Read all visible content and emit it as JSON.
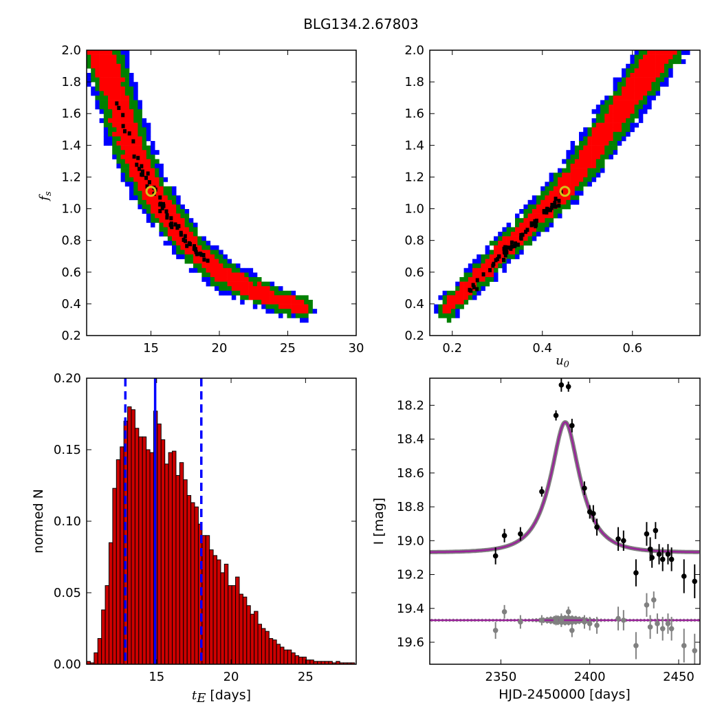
{
  "figure": {
    "title": "BLG134.2.67803"
  },
  "colors": {
    "sigma1": "#ff0000",
    "sigma2": "#008000",
    "sigma3": "#0000ff",
    "samples": "#000000",
    "bestfit_marker": "#d4c21a",
    "hist_bar": "#cc0000",
    "quantile_line": "#0000ff",
    "model_line": "#992299",
    "model_band": "#808080",
    "data_points": "#000000",
    "residual_points": "#808080"
  },
  "chart_data": [
    {
      "id": "fs_vs_tE",
      "type": "heatmap",
      "xlabel": "",
      "ylabel_main": "f",
      "ylabel_sub": "s",
      "xlim": [
        10.3,
        30
      ],
      "ylim": [
        0.2,
        2.0
      ],
      "xticks": [
        15,
        20,
        25,
        30
      ],
      "yticks": [
        0.2,
        0.4,
        0.6,
        0.8,
        1.0,
        1.2,
        1.4,
        1.6,
        1.8,
        2.0
      ],
      "xtick_labels": [
        "15",
        "20",
        "25",
        "30"
      ],
      "ytick_labels": [
        "0.2",
        "0.4",
        "0.6",
        "0.8",
        "1.0",
        "1.2",
        "1.4",
        "1.6",
        "1.8",
        "2.0"
      ],
      "ridge": [
        [
          11.4,
          2.0
        ],
        [
          12.5,
          1.7
        ],
        [
          13.5,
          1.4
        ],
        [
          14.5,
          1.2
        ],
        [
          15.5,
          1.05
        ],
        [
          16.5,
          0.92
        ],
        [
          18,
          0.76
        ],
        [
          20,
          0.6
        ],
        [
          22,
          0.5
        ],
        [
          24,
          0.43
        ],
        [
          26,
          0.38
        ]
      ],
      "band_widths": {
        "sigma1": [
          1.1,
          0.6
        ],
        "sigma2": [
          1.7,
          1.3
        ],
        "sigma3": [
          2.2,
          1.9
        ]
      },
      "best_fit": [
        15.0,
        1.11
      ]
    },
    {
      "id": "fs_vs_u0",
      "type": "heatmap",
      "xlabel_main": "u",
      "xlabel_sub": "0",
      "ylabel": "",
      "xlim": [
        0.15,
        0.75
      ],
      "ylim": [
        0.2,
        2.0
      ],
      "xticks": [
        0.2,
        0.4,
        0.6
      ],
      "yticks": [
        0.2,
        0.4,
        0.6,
        0.8,
        1.0,
        1.2,
        1.4,
        1.6,
        1.8,
        2.0
      ],
      "xtick_labels": [
        "0.2",
        "0.4",
        "0.6"
      ],
      "ytick_labels": [
        "0.2",
        "0.4",
        "0.6",
        "0.8",
        "1.0",
        "1.2",
        "1.4",
        "1.6",
        "1.8",
        "2.0"
      ],
      "ridge": [
        [
          0.19,
          0.37
        ],
        [
          0.25,
          0.55
        ],
        [
          0.31,
          0.73
        ],
        [
          0.37,
          0.9
        ],
        [
          0.43,
          1.06
        ],
        [
          0.49,
          1.28
        ],
        [
          0.55,
          1.52
        ],
        [
          0.61,
          1.77
        ],
        [
          0.67,
          2.0
        ]
      ],
      "band_widths": {
        "sigma1": [
          0.018,
          0.035
        ],
        "sigma2": [
          0.026,
          0.05
        ],
        "sigma3": [
          0.032,
          0.06
        ]
      },
      "best_fit": [
        0.45,
        1.11
      ]
    },
    {
      "id": "tE_histogram",
      "type": "bar",
      "xlabel_main": "t",
      "xlabel_sub": "E",
      "xlabel_tail": " [days]",
      "ylabel": "normed N",
      "xlim": [
        10.3,
        28.4
      ],
      "ylim": [
        0.0,
        0.2
      ],
      "xticks": [
        15,
        20,
        25
      ],
      "yticks": [
        0.0,
        0.05,
        0.1,
        0.15,
        0.2
      ],
      "xtick_labels": [
        "15",
        "20",
        "25"
      ],
      "ytick_labels": [
        "0.00",
        "0.05",
        "0.10",
        "0.15",
        "0.20"
      ],
      "bin_start": 10.3,
      "bin_width": 0.25,
      "values": [
        0.002,
        0.001,
        0.008,
        0.018,
        0.038,
        0.055,
        0.085,
        0.123,
        0.143,
        0.152,
        0.17,
        0.18,
        0.178,
        0.165,
        0.159,
        0.159,
        0.15,
        0.148,
        0.177,
        0.168,
        0.157,
        0.14,
        0.148,
        0.149,
        0.132,
        0.141,
        0.129,
        0.118,
        0.113,
        0.11,
        0.098,
        0.09,
        0.09,
        0.08,
        0.076,
        0.073,
        0.064,
        0.07,
        0.055,
        0.055,
        0.061,
        0.049,
        0.047,
        0.041,
        0.035,
        0.037,
        0.028,
        0.025,
        0.023,
        0.018,
        0.017,
        0.014,
        0.012,
        0.01,
        0.01,
        0.008,
        0.006,
        0.005,
        0.005,
        0.003,
        0.003,
        0.002,
        0.002,
        0.002,
        0.002,
        0.002,
        0.001,
        0.002,
        0.001,
        0.001,
        0.001,
        0.001
      ],
      "median": 14.9,
      "quantiles": [
        12.9,
        18.0
      ]
    },
    {
      "id": "light_curve",
      "type": "scatter",
      "xlabel": "HJD-2450000 [days]",
      "ylabel": "I [mag]",
      "xlim": [
        2310,
        2462
      ],
      "ylim": [
        19.73,
        18.04
      ],
      "y_inverted": true,
      "xticks": [
        2350,
        2400,
        2450
      ],
      "yticks": [
        18.2,
        18.4,
        18.6,
        18.8,
        19.0,
        19.2,
        19.4,
        19.6
      ],
      "xtick_labels": [
        "2350",
        "2400",
        "2450"
      ],
      "ytick_labels": [
        "18.2",
        "18.4",
        "18.6",
        "18.8",
        "19.0",
        "19.2",
        "19.4",
        "19.6"
      ],
      "model": {
        "t0": 2386.2,
        "tE": 15.0,
        "u0": 0.45,
        "baseline": 19.07,
        "amp_scale": 0.815
      },
      "residual_baseline": 19.47,
      "points": [
        [
          2347,
          19.09,
          0.05
        ],
        [
          2352,
          18.97,
          0.04
        ],
        [
          2361,
          18.96,
          0.04
        ],
        [
          2373,
          18.71,
          0.03
        ],
        [
          2381,
          18.26,
          0.03
        ],
        [
          2384,
          18.08,
          0.04
        ],
        [
          2388,
          18.09,
          0.03
        ],
        [
          2390,
          18.32,
          0.04
        ],
        [
          2397,
          18.69,
          0.04
        ],
        [
          2400,
          18.83,
          0.04
        ],
        [
          2402,
          18.84,
          0.05
        ],
        [
          2404,
          18.92,
          0.05
        ],
        [
          2416,
          18.99,
          0.07
        ],
        [
          2419,
          19.0,
          0.06
        ],
        [
          2426,
          19.19,
          0.08
        ],
        [
          2432,
          18.96,
          0.07
        ],
        [
          2434,
          19.05,
          0.07
        ],
        [
          2435,
          19.1,
          0.06
        ],
        [
          2437,
          18.94,
          0.05
        ],
        [
          2439,
          19.08,
          0.06
        ],
        [
          2441,
          19.11,
          0.07
        ],
        [
          2444,
          19.08,
          0.06
        ],
        [
          2446,
          19.11,
          0.07
        ],
        [
          2453,
          19.21,
          0.1
        ],
        [
          2459,
          19.24,
          0.1
        ]
      ],
      "residuals": [
        [
          2347,
          19.53,
          0.05
        ],
        [
          2352,
          19.42,
          0.04
        ],
        [
          2361,
          19.48,
          0.04
        ],
        [
          2373,
          19.47,
          0.03
        ],
        [
          2381,
          19.47,
          0.03
        ],
        [
          2384,
          19.47,
          0.04
        ],
        [
          2388,
          19.42,
          0.03
        ],
        [
          2390,
          19.53,
          0.04
        ],
        [
          2397,
          19.48,
          0.04
        ],
        [
          2400,
          19.49,
          0.04
        ],
        [
          2404,
          19.5,
          0.05
        ],
        [
          2416,
          19.46,
          0.07
        ],
        [
          2419,
          19.47,
          0.06
        ],
        [
          2426,
          19.62,
          0.08
        ],
        [
          2432,
          19.38,
          0.07
        ],
        [
          2434,
          19.51,
          0.07
        ],
        [
          2436,
          19.35,
          0.05
        ],
        [
          2438,
          19.49,
          0.06
        ],
        [
          2441,
          19.52,
          0.07
        ],
        [
          2444,
          19.49,
          0.06
        ],
        [
          2446,
          19.52,
          0.07
        ],
        [
          2453,
          19.62,
          0.1
        ],
        [
          2459,
          19.65,
          0.1
        ]
      ]
    }
  ]
}
